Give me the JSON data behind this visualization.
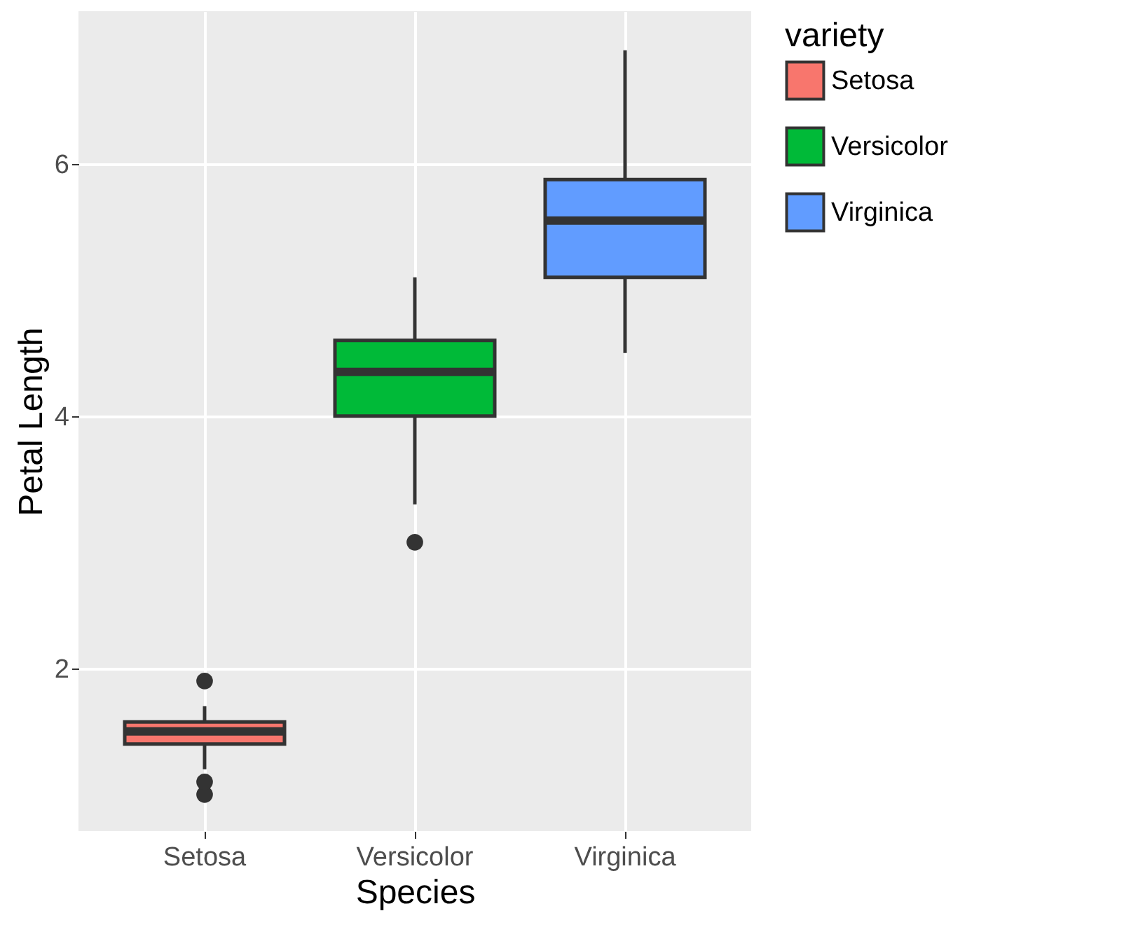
{
  "chart_data": {
    "type": "box",
    "xlabel": "Species",
    "ylabel": "Petal Length",
    "legend_title": "variety",
    "categories": [
      "Setosa",
      "Versicolor",
      "Virginica"
    ],
    "series": [
      {
        "name": "Setosa",
        "color": "#f8766d",
        "boxes": [
          {
            "low": 1.2,
            "q1": 1.4,
            "median": 1.5,
            "q3": 1.575,
            "high": 1.7,
            "outliers": [
              1.0,
              1.1,
              1.9
            ]
          },
          null,
          null
        ]
      },
      {
        "name": "Versicolor",
        "color": "#00ba38",
        "boxes": [
          null,
          {
            "low": 3.3,
            "q1": 4.0,
            "median": 4.35,
            "q3": 4.6,
            "high": 5.1,
            "outliers": [
              3.0
            ]
          },
          null
        ]
      },
      {
        "name": "Virginica",
        "color": "#619cff",
        "boxes": [
          null,
          null,
          {
            "low": 4.5,
            "q1": 5.1,
            "median": 5.55,
            "q3": 5.875,
            "high": 6.9
          }
        ]
      }
    ],
    "ylim": [
      0.71,
      7.21
    ],
    "yticks": [
      2,
      4,
      6
    ],
    "grid": true,
    "legend": "right"
  }
}
